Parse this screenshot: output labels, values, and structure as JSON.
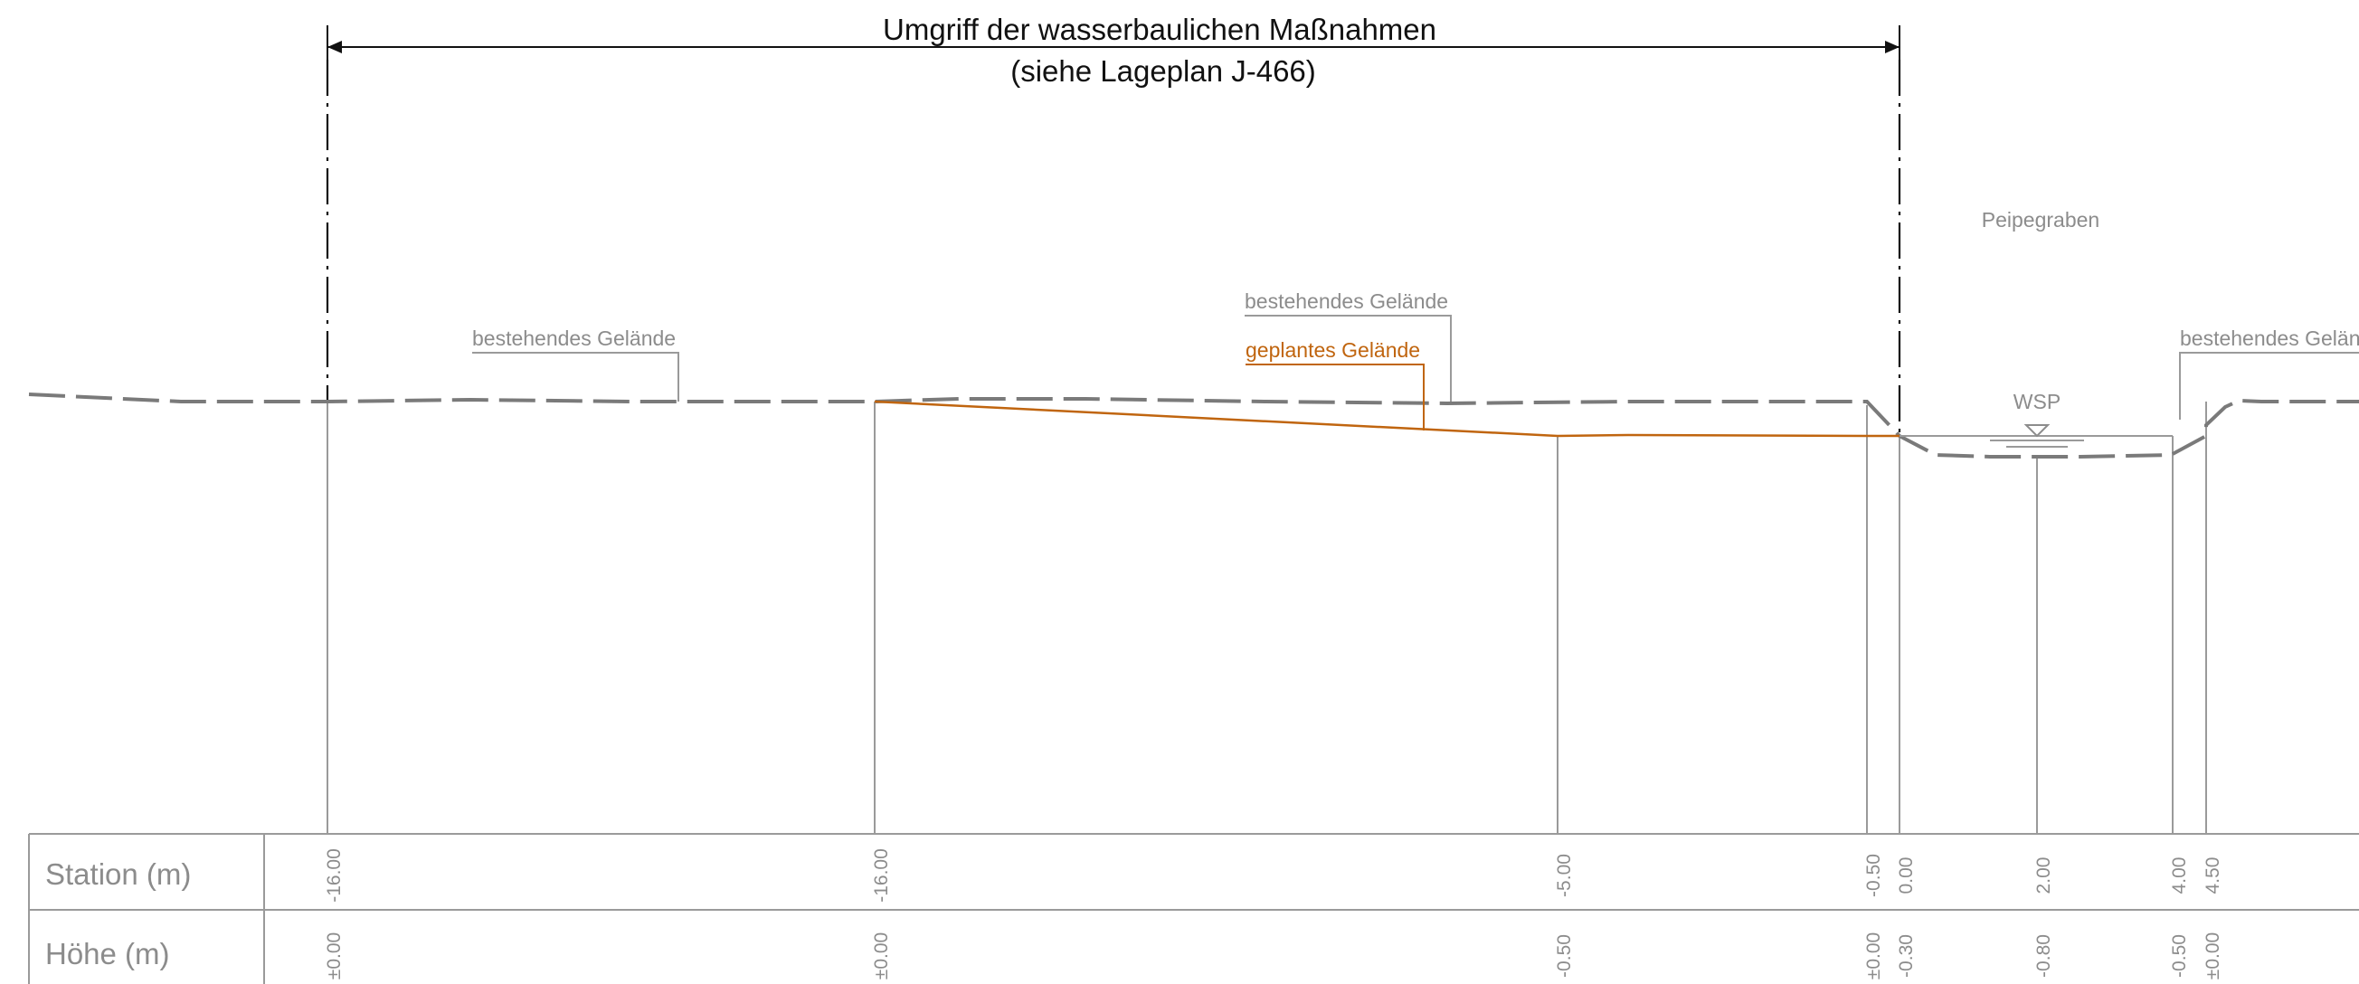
{
  "header": {
    "title_line1": "Umgriff der wasserbaulichen Maßnahmen",
    "title_line2": "(siehe Lageplan J-466)"
  },
  "labels": {
    "peipegraben": "Peipegraben",
    "existing_terrain_left": "bestehendes Gelände",
    "existing_terrain_mid": "bestehendes Gelände",
    "existing_terrain_right": "bestehendes Gelän",
    "planned_terrain": "geplantes Gelände",
    "water_level": "WSP"
  },
  "table": {
    "station_label": "Station (m)",
    "height_label": "Höhe (m)",
    "stations": [
      "-16.00",
      "-16.00",
      "-5.00",
      "-0.50",
      "0.00",
      "2.00",
      "4.00",
      "4.50"
    ],
    "heights": [
      "±0.00",
      "±0.00",
      "-0.50",
      "±0.00",
      "-0.30",
      "-0.80",
      "-0.50",
      "±0.00"
    ]
  },
  "colors": {
    "existing_terrain": "#7a7a7a",
    "planned_terrain": "#c0650f",
    "dimension_line": "#111111",
    "annotation_text": "#8c8c8c"
  }
}
